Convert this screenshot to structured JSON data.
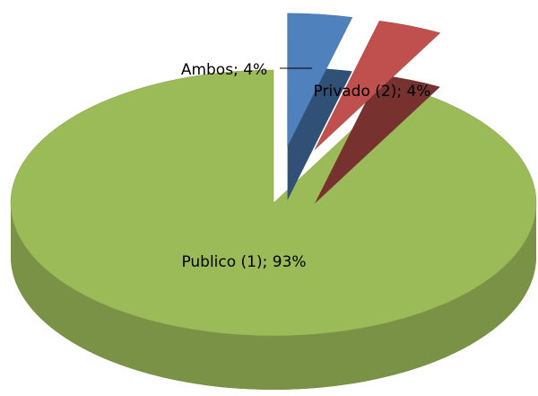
{
  "chart_data": {
    "type": "pie3d",
    "values": [
      4,
      4,
      93
    ],
    "value_labels": [
      "Ambos; 4%",
      "Privado (2); 4%",
      "Publico (1); 93%"
    ],
    "colors": [
      "#4f81bd",
      "#c0504d",
      "#9bbb59"
    ],
    "exploded": [
      true,
      true,
      false
    ]
  }
}
